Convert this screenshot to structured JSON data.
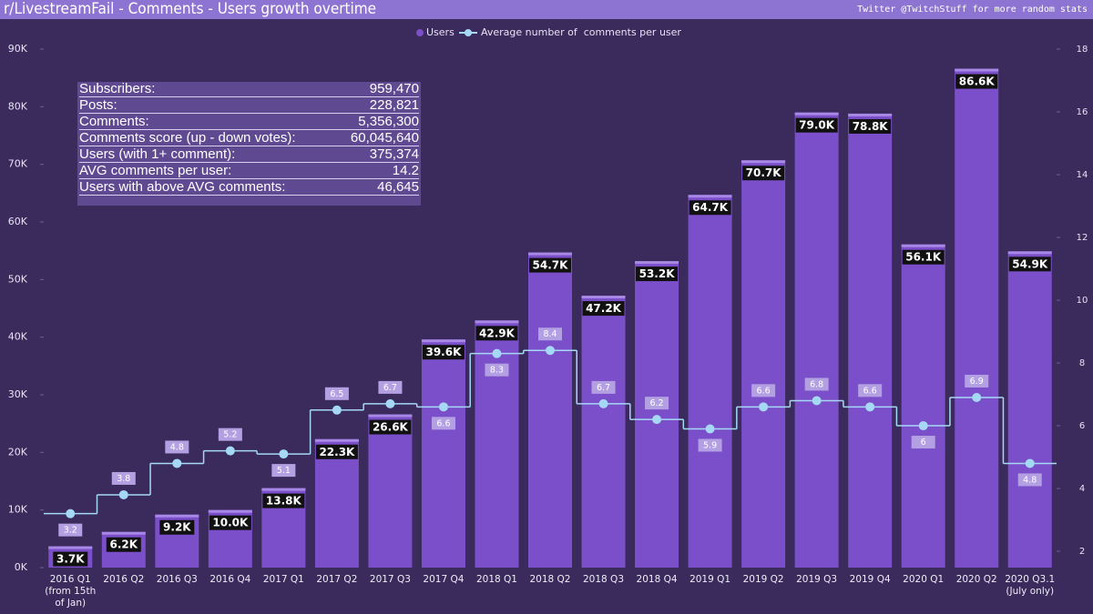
{
  "header": {
    "title": "r/LivestreamFail - Comments - Users growth overtime",
    "credit": "Twitter @TwitchStuff for more random stats"
  },
  "stats": [
    [
      "Subscribers:",
      "959,470"
    ],
    [
      "Posts:",
      "228,821"
    ],
    [
      "Comments:",
      "5,356,300"
    ],
    [
      "Comments score (up - down votes):",
      "60,045,640"
    ],
    [
      "Users (with 1+ comment):",
      "375,374"
    ],
    [
      "AVG comments per user:",
      "14.2"
    ],
    [
      "Users with above AVG comments:",
      "46,645"
    ]
  ],
  "chart_data": {
    "type": "bar-line",
    "categories": [
      "2016 Q1\n(from 15th\nof Jan)",
      "2016 Q2",
      "2016 Q3",
      "2016 Q4",
      "2017 Q1",
      "2017 Q2",
      "2017 Q3",
      "2017 Q4",
      "2018 Q1",
      "2018 Q2",
      "2018 Q3",
      "2018 Q4",
      "2019 Q1",
      "2019 Q2",
      "2019 Q3",
      "2019 Q4",
      "2020 Q1",
      "2020 Q2",
      "2020 Q3.1\n(July only)"
    ],
    "series": [
      {
        "name": "Users",
        "color": "#7b4fc9",
        "values": [
          3700,
          6200,
          9200,
          10000,
          13800,
          22300,
          26600,
          39600,
          42900,
          54700,
          47200,
          53200,
          64700,
          70700,
          79000,
          78800,
          56100,
          86600,
          54900
        ],
        "value_labels": [
          "3.7K",
          "6.2K",
          "9.2K",
          "10.0K",
          "13.8K",
          "22.3K",
          "26.6K",
          "39.6K",
          "42.9K",
          "54.7K",
          "47.2K",
          "53.2K",
          "64.7K",
          "70.7K",
          "79.0K",
          "78.8K",
          "56.1K",
          "86.6K",
          "54.9K"
        ]
      },
      {
        "name": "Average number of  comments per user",
        "color": "#a5d8f5",
        "axis": "y2",
        "step": true,
        "values": [
          3.2,
          3.8,
          4.8,
          5.2,
          5.1,
          6.5,
          6.7,
          6.6,
          8.3,
          8.4,
          6.7,
          6.2,
          5.9,
          6.6,
          6.8,
          6.6,
          6.0,
          6.9,
          4.8
        ]
      }
    ],
    "ylim": [
      0,
      90000
    ],
    "yticks": [
      {
        "value": 0,
        "label": "0K"
      },
      {
        "value": 10000,
        "label": "10K"
      },
      {
        "value": 20000,
        "label": "20K"
      },
      {
        "value": 30000,
        "label": "30K"
      },
      {
        "value": 40000,
        "label": "40K"
      },
      {
        "value": 50000,
        "label": "50K"
      },
      {
        "value": 60000,
        "label": "60K"
      },
      {
        "value": 70000,
        "label": "70K"
      },
      {
        "value": 80000,
        "label": "80K"
      },
      {
        "value": 90000,
        "label": "90K"
      }
    ],
    "y2lim": [
      1.48,
      18
    ],
    "y2ticks": [
      2,
      4,
      6,
      8,
      10,
      12,
      14,
      16,
      18
    ]
  }
}
